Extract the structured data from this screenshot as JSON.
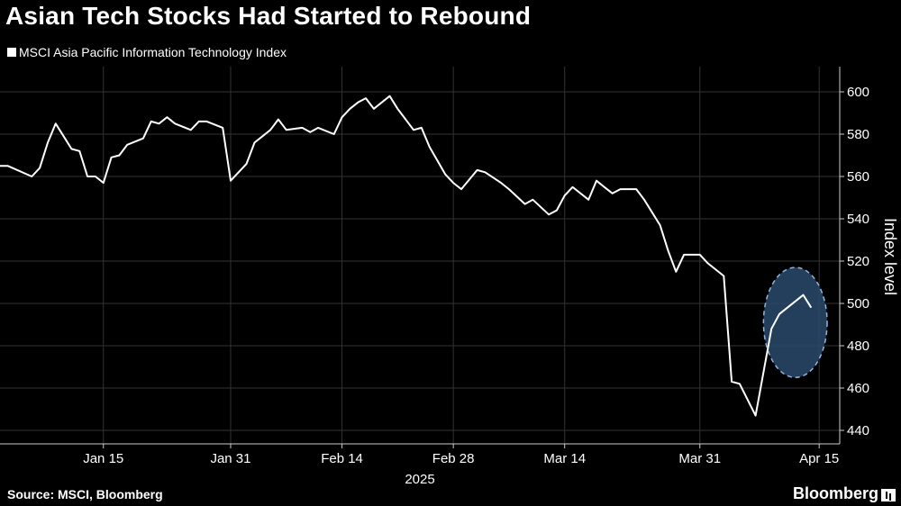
{
  "title": "Asian Tech Stocks Had Started to Rebound",
  "legend": {
    "label": "MSCI Asia Pacific Information Technology Index"
  },
  "source": "Source: MSCI, Bloomberg",
  "brand": "Bloomberg",
  "colors": {
    "background": "#000000",
    "line": "#ffffff",
    "grid": "#333333",
    "highlight_fill": "#2a4a6b",
    "highlight_stroke": "#8fb5dc"
  },
  "chart_data": {
    "type": "line",
    "title": "Asian Tech Stocks Had Started to Rebound",
    "ylabel": "Index level",
    "xlabel": "2025",
    "ylim": [
      435,
      612
    ],
    "y_ticks": [
      440,
      460,
      480,
      500,
      520,
      540,
      560,
      580,
      600
    ],
    "x_ticks": [
      {
        "label": "Jan 15",
        "date": "2025-01-15"
      },
      {
        "label": "Jan 31",
        "date": "2025-01-31"
      },
      {
        "label": "Feb 14",
        "date": "2025-02-14"
      },
      {
        "label": "Feb 28",
        "date": "2025-02-28"
      },
      {
        "label": "Mar 14",
        "date": "2025-03-14"
      },
      {
        "label": "Mar 31",
        "date": "2025-03-31"
      },
      {
        "label": "Apr 15",
        "date": "2025-04-15"
      }
    ],
    "year_label": "2025",
    "grid": true,
    "highlight": {
      "shape": "ellipse",
      "from_date": "2025-04-08",
      "to_date": "2025-04-16",
      "y_range": [
        465,
        517
      ]
    },
    "series": [
      {
        "name": "MSCI Asia Pacific Information Technology Index",
        "points": [
          [
            "2025-01-02",
            565
          ],
          [
            "2025-01-03",
            565
          ],
          [
            "2025-01-06",
            560
          ],
          [
            "2025-01-07",
            564
          ],
          [
            "2025-01-08",
            576
          ],
          [
            "2025-01-09",
            585
          ],
          [
            "2025-01-10",
            579
          ],
          [
            "2025-01-11",
            573
          ],
          [
            "2025-01-12",
            572
          ],
          [
            "2025-01-13",
            560
          ],
          [
            "2025-01-14",
            560
          ],
          [
            "2025-01-15",
            557
          ],
          [
            "2025-01-16",
            569
          ],
          [
            "2025-01-17",
            570
          ],
          [
            "2025-01-18",
            575
          ],
          [
            "2025-01-20",
            578
          ],
          [
            "2025-01-21",
            586
          ],
          [
            "2025-01-22",
            585
          ],
          [
            "2025-01-23",
            588
          ],
          [
            "2025-01-24",
            585
          ],
          [
            "2025-01-26",
            582
          ],
          [
            "2025-01-27",
            586
          ],
          [
            "2025-01-28",
            586
          ],
          [
            "2025-01-30",
            583
          ],
          [
            "2025-01-31",
            558
          ],
          [
            "2025-02-02",
            566
          ],
          [
            "2025-02-03",
            576
          ],
          [
            "2025-02-05",
            582
          ],
          [
            "2025-02-06",
            587
          ],
          [
            "2025-02-07",
            582
          ],
          [
            "2025-02-09",
            583
          ],
          [
            "2025-02-10",
            581
          ],
          [
            "2025-02-11",
            583
          ],
          [
            "2025-02-13",
            580
          ],
          [
            "2025-02-14",
            588
          ],
          [
            "2025-02-15",
            592
          ],
          [
            "2025-02-16",
            595
          ],
          [
            "2025-02-17",
            597
          ],
          [
            "2025-02-18",
            592
          ],
          [
            "2025-02-20",
            598
          ],
          [
            "2025-02-21",
            592
          ],
          [
            "2025-02-23",
            582
          ],
          [
            "2025-02-24",
            583
          ],
          [
            "2025-02-25",
            574
          ],
          [
            "2025-02-27",
            561
          ],
          [
            "2025-02-28",
            557
          ],
          [
            "2025-03-01",
            554
          ],
          [
            "2025-03-03",
            563
          ],
          [
            "2025-03-04",
            562
          ],
          [
            "2025-03-06",
            557
          ],
          [
            "2025-03-07",
            554
          ],
          [
            "2025-03-09",
            547
          ],
          [
            "2025-03-10",
            549
          ],
          [
            "2025-03-12",
            542
          ],
          [
            "2025-03-13",
            544
          ],
          [
            "2025-03-14",
            551
          ],
          [
            "2025-03-15",
            555
          ],
          [
            "2025-03-17",
            549
          ],
          [
            "2025-03-18",
            558
          ],
          [
            "2025-03-19",
            555
          ],
          [
            "2025-03-20",
            552
          ],
          [
            "2025-03-21",
            554
          ],
          [
            "2025-03-23",
            554
          ],
          [
            "2025-03-24",
            549
          ],
          [
            "2025-03-26",
            537
          ],
          [
            "2025-03-27",
            525
          ],
          [
            "2025-03-28",
            515
          ],
          [
            "2025-03-29",
            523
          ],
          [
            "2025-03-31",
            523
          ],
          [
            "2025-04-01",
            519
          ],
          [
            "2025-04-03",
            513
          ],
          [
            "2025-04-04",
            463
          ],
          [
            "2025-04-05",
            462
          ],
          [
            "2025-04-07",
            447
          ],
          [
            "2025-04-09",
            488
          ],
          [
            "2025-04-10",
            495
          ],
          [
            "2025-04-11",
            498
          ],
          [
            "2025-04-13",
            504
          ],
          [
            "2025-04-14",
            498
          ]
        ]
      }
    ]
  }
}
